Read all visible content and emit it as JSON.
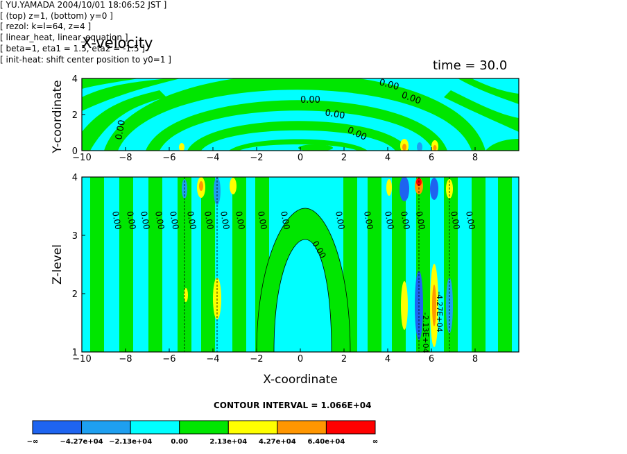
{
  "chart_data": [
    {
      "type": "heatmap",
      "panel": "top",
      "title": "X-velocity",
      "time_label": "time = 30.0",
      "xlabel": "",
      "ylabel": "Y-coordinate",
      "xlim": [
        -10,
        10
      ],
      "ylim": [
        0,
        4
      ],
      "x_ticks": [
        "-10",
        "-8",
        "-6",
        "-4",
        "-2",
        "0",
        "2",
        "4",
        "6",
        "8"
      ],
      "y_ticks": [
        "0",
        "2",
        "4"
      ],
      "contour_labels": [
        "0.00",
        "0.00",
        "0.00",
        "0.00",
        "0.00",
        "0.00"
      ]
    },
    {
      "type": "heatmap",
      "panel": "bottom",
      "xlabel": "X-coordinate",
      "ylabel": "Z-level",
      "xlim": [
        -10,
        10
      ],
      "ylim": [
        1,
        4
      ],
      "x_ticks": [
        "-10",
        "-8",
        "-6",
        "-4",
        "-2",
        "0",
        "2",
        "4",
        "6",
        "8"
      ],
      "y_ticks": [
        "1",
        "2",
        "3",
        "4"
      ],
      "contour_labels": [
        "0.00",
        "0.00",
        "0.00",
        "0.00",
        "0.00",
        "0.00",
        "0.00",
        "0.00",
        "0.00",
        "0.00",
        "0.00",
        "0.00",
        "0.00",
        "0.00",
        "0.00",
        "0.00",
        "0.00",
        "0.00"
      ],
      "extra_labels": [
        "-4.27E+04",
        "-2.13E+04"
      ]
    }
  ],
  "contour_interval": "CONTOUR INTERVAL = 1.066E+04",
  "colorbar": {
    "labels": [
      "-∞",
      "-4.27e+04",
      "-2.13e+04",
      "0.00",
      "2.13e+04",
      "4.27e+04",
      "6.40e+04",
      "∞"
    ],
    "colors": [
      "#1e64f0",
      "#1e9ff0",
      "#00ffff",
      "#00e600",
      "#ffff00",
      "#ff9600",
      "#ff0000"
    ]
  },
  "meta_lines": [
    "[ YU.YAMADA 2004/10/01 18:06:52 JST ]",
    "[ (top) z=1, (bottom) y=0 ]",
    "[ rezol: k=l=64, z=4 ]",
    "[ linear_heat, linear_equation ]",
    "[ beta=1, eta1 = 1.5, eta2 = -1.5 ]",
    "[ init-heat: shift center position to y0=1 ]"
  ]
}
